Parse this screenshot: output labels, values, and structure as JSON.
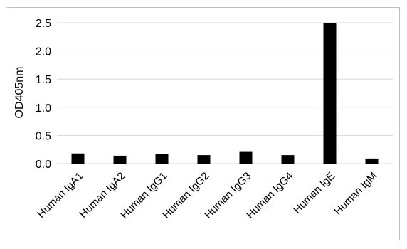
{
  "chart_data": {
    "type": "bar",
    "title": "",
    "xlabel": "",
    "ylabel": "OD405nm",
    "categories": [
      "Human IgA1",
      "Human IgA2",
      "Human IgG1",
      "Human IgG2",
      "Human IgG3",
      "Human IgG4",
      "Human IgE",
      "Human IgM"
    ],
    "values": [
      0.18,
      0.14,
      0.17,
      0.15,
      0.22,
      0.15,
      2.49,
      0.09
    ],
    "y_ticks": [
      "0.0",
      "0.5",
      "1.0",
      "1.5",
      "2.0",
      "2.5"
    ],
    "ylim": [
      0,
      2.5
    ],
    "grid": true,
    "legend": "none",
    "bar_color": "#000000",
    "grid_color": "#d9d9d9"
  }
}
